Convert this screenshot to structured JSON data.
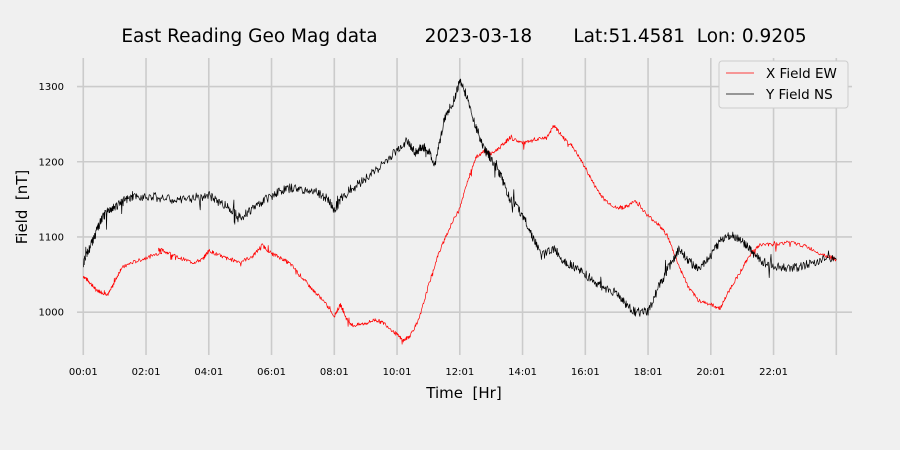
{
  "chart_data": {
    "type": "line",
    "title": "East Reading Geo Mag data        2023-03-18       Lat:51.4581  Lon: 0.9205",
    "xlabel": "Time  [Hr]",
    "ylabel": "Field  [nT]",
    "xlim": [
      -0.2,
      24.5
    ],
    "ylim": [
      943,
      1338
    ],
    "x_ticks": [
      {
        "value": 0,
        "label": "00:01"
      },
      {
        "value": 2,
        "label": "02:01"
      },
      {
        "value": 4,
        "label": "04:01"
      },
      {
        "value": 6,
        "label": "06:01"
      },
      {
        "value": 8,
        "label": "08:01"
      },
      {
        "value": 10,
        "label": "10:01"
      },
      {
        "value": 12,
        "label": "12:01"
      },
      {
        "value": 14,
        "label": "14:01"
      },
      {
        "value": 16,
        "label": "16:01"
      },
      {
        "value": 18,
        "label": "18:01"
      },
      {
        "value": 20,
        "label": "20:01"
      },
      {
        "value": 22,
        "label": "22:01"
      },
      {
        "value": 24,
        "label": ""
      }
    ],
    "y_ticks": [
      1000,
      1100,
      1200,
      1300
    ],
    "grid": true,
    "legend_position": "top-right",
    "series": [
      {
        "name": "X Field EW",
        "color": "#ff0000",
        "points": [
          [
            0.0,
            1048
          ],
          [
            0.2,
            1040
          ],
          [
            0.4,
            1030
          ],
          [
            0.6,
            1026
          ],
          [
            0.8,
            1024
          ],
          [
            1.0,
            1040
          ],
          [
            1.2,
            1058
          ],
          [
            1.5,
            1065
          ],
          [
            2.0,
            1072
          ],
          [
            2.5,
            1080
          ],
          [
            2.4,
            1084
          ],
          [
            2.7,
            1079
          ],
          [
            3.0,
            1073
          ],
          [
            3.5,
            1066
          ],
          [
            3.8,
            1070
          ],
          [
            4.0,
            1082
          ],
          [
            4.3,
            1076
          ],
          [
            4.6,
            1071
          ],
          [
            5.0,
            1067
          ],
          [
            5.4,
            1074
          ],
          [
            5.7,
            1089
          ],
          [
            6.0,
            1078
          ],
          [
            6.3,
            1072
          ],
          [
            6.6,
            1064
          ],
          [
            7.0,
            1045
          ],
          [
            7.3,
            1030
          ],
          [
            7.6,
            1018
          ],
          [
            8.0,
            995
          ],
          [
            8.2,
            1010
          ],
          [
            8.4,
            990
          ],
          [
            8.6,
            982
          ],
          [
            9.0,
            985
          ],
          [
            9.3,
            990
          ],
          [
            9.6,
            985
          ],
          [
            10.0,
            970
          ],
          [
            10.2,
            962
          ],
          [
            10.4,
            968
          ],
          [
            10.7,
            990
          ],
          [
            11.0,
            1035
          ],
          [
            11.3,
            1075
          ],
          [
            11.6,
            1105
          ],
          [
            12.0,
            1140
          ],
          [
            12.3,
            1180
          ],
          [
            12.5,
            1205
          ],
          [
            12.8,
            1215
          ],
          [
            13.0,
            1210
          ],
          [
            13.3,
            1220
          ],
          [
            13.6,
            1232
          ],
          [
            14.0,
            1225
          ],
          [
            14.4,
            1228
          ],
          [
            14.8,
            1234
          ],
          [
            15.0,
            1248
          ],
          [
            15.3,
            1232
          ],
          [
            15.6,
            1220
          ],
          [
            16.0,
            1192
          ],
          [
            16.3,
            1168
          ],
          [
            16.6,
            1150
          ],
          [
            17.0,
            1138
          ],
          [
            17.3,
            1140
          ],
          [
            17.6,
            1148
          ],
          [
            18.0,
            1128
          ],
          [
            18.3,
            1118
          ],
          [
            18.6,
            1103
          ],
          [
            19.0,
            1060
          ],
          [
            19.3,
            1032
          ],
          [
            19.6,
            1016
          ],
          [
            20.0,
            1010
          ],
          [
            20.3,
            1005
          ],
          [
            20.6,
            1030
          ],
          [
            21.0,
            1058
          ],
          [
            21.3,
            1080
          ],
          [
            21.6,
            1090
          ],
          [
            22.0,
            1090
          ],
          [
            22.5,
            1093
          ],
          [
            23.0,
            1088
          ],
          [
            23.5,
            1078
          ],
          [
            24.0,
            1070
          ]
        ]
      },
      {
        "name": "Y Field NS",
        "color": "#000000",
        "points": [
          [
            0.0,
            1065
          ],
          [
            0.2,
            1085
          ],
          [
            0.4,
            1105
          ],
          [
            0.6,
            1125
          ],
          [
            0.8,
            1135
          ],
          [
            1.0,
            1140
          ],
          [
            1.3,
            1148
          ],
          [
            1.6,
            1152
          ],
          [
            2.0,
            1155
          ],
          [
            2.5,
            1152
          ],
          [
            3.0,
            1148
          ],
          [
            3.5,
            1152
          ],
          [
            4.0,
            1155
          ],
          [
            4.4,
            1145
          ],
          [
            4.8,
            1135
          ],
          [
            5.0,
            1125
          ],
          [
            5.4,
            1138
          ],
          [
            5.8,
            1150
          ],
          [
            6.2,
            1160
          ],
          [
            6.6,
            1165
          ],
          [
            7.0,
            1163
          ],
          [
            7.4,
            1160
          ],
          [
            7.8,
            1150
          ],
          [
            8.0,
            1135
          ],
          [
            8.2,
            1150
          ],
          [
            8.6,
            1165
          ],
          [
            9.0,
            1178
          ],
          [
            9.5,
            1195
          ],
          [
            10.0,
            1215
          ],
          [
            10.3,
            1228
          ],
          [
            10.6,
            1212
          ],
          [
            10.8,
            1220
          ],
          [
            11.0,
            1215
          ],
          [
            11.2,
            1195
          ],
          [
            11.5,
            1255
          ],
          [
            11.8,
            1280
          ],
          [
            12.0,
            1308
          ],
          [
            12.2,
            1290
          ],
          [
            12.5,
            1248
          ],
          [
            12.8,
            1215
          ],
          [
            13.0,
            1205
          ],
          [
            13.3,
            1182
          ],
          [
            13.6,
            1150
          ],
          [
            14.0,
            1130
          ],
          [
            14.3,
            1102
          ],
          [
            14.6,
            1075
          ],
          [
            15.0,
            1085
          ],
          [
            15.3,
            1068
          ],
          [
            15.6,
            1062
          ],
          [
            16.0,
            1050
          ],
          [
            16.3,
            1040
          ],
          [
            16.6,
            1032
          ],
          [
            17.0,
            1025
          ],
          [
            17.3,
            1010
          ],
          [
            17.6,
            1000
          ],
          [
            18.0,
            1000
          ],
          [
            18.3,
            1030
          ],
          [
            18.6,
            1055
          ],
          [
            19.0,
            1085
          ],
          [
            19.3,
            1068
          ],
          [
            19.6,
            1058
          ],
          [
            20.0,
            1075
          ],
          [
            20.3,
            1095
          ],
          [
            20.6,
            1103
          ],
          [
            21.0,
            1095
          ],
          [
            21.3,
            1080
          ],
          [
            21.6,
            1068
          ],
          [
            22.0,
            1062
          ],
          [
            22.5,
            1058
          ],
          [
            23.0,
            1062
          ],
          [
            23.5,
            1070
          ],
          [
            24.0,
            1070
          ]
        ]
      }
    ]
  }
}
